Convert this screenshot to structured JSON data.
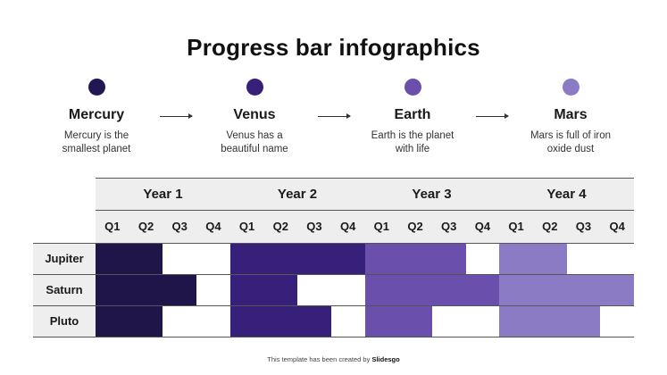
{
  "title": "Progress bar infographics",
  "steps": [
    {
      "name": "Mercury",
      "desc_line1": "Mercury is the",
      "desc_line2": "smallest planet",
      "color": "#231654"
    },
    {
      "name": "Venus",
      "desc_line1": "Venus has a",
      "desc_line2": "beautiful name",
      "color": "#36207a"
    },
    {
      "name": "Earth",
      "desc_line1": "Earth is the planet",
      "desc_line2": "with life",
      "color": "#6a4fad"
    },
    {
      "name": "Mars",
      "desc_line1": "Mars is full of iron",
      "desc_line2": "oxide dust",
      "color": "#8b7bc4"
    }
  ],
  "table": {
    "years": [
      "Year 1",
      "Year 2",
      "Year 3",
      "Year 4"
    ],
    "quarters": [
      "Q1",
      "Q2",
      "Q3",
      "Q4"
    ],
    "rows": [
      "Jupiter",
      "Saturn",
      "Pluto"
    ]
  },
  "footer": {
    "text": "This template has been created by ",
    "brand": "Slidesgo"
  },
  "chart_data": {
    "type": "table",
    "title": "Progress bar infographics",
    "columns": [
      "Year 1",
      "Year 2",
      "Year 3",
      "Year 4"
    ],
    "subcolumns": [
      "Q1",
      "Q2",
      "Q3",
      "Q4"
    ],
    "year_colors": [
      "#1f1548",
      "#36207a",
      "#6a4fad",
      "#8b7bc4"
    ],
    "series": [
      {
        "name": "Jupiter",
        "quarters_filled": [
          2,
          4,
          3,
          2
        ]
      },
      {
        "name": "Saturn",
        "quarters_filled": [
          3,
          2,
          4,
          4
        ]
      },
      {
        "name": "Pluto",
        "quarters_filled": [
          2,
          3,
          2,
          3
        ]
      }
    ]
  }
}
